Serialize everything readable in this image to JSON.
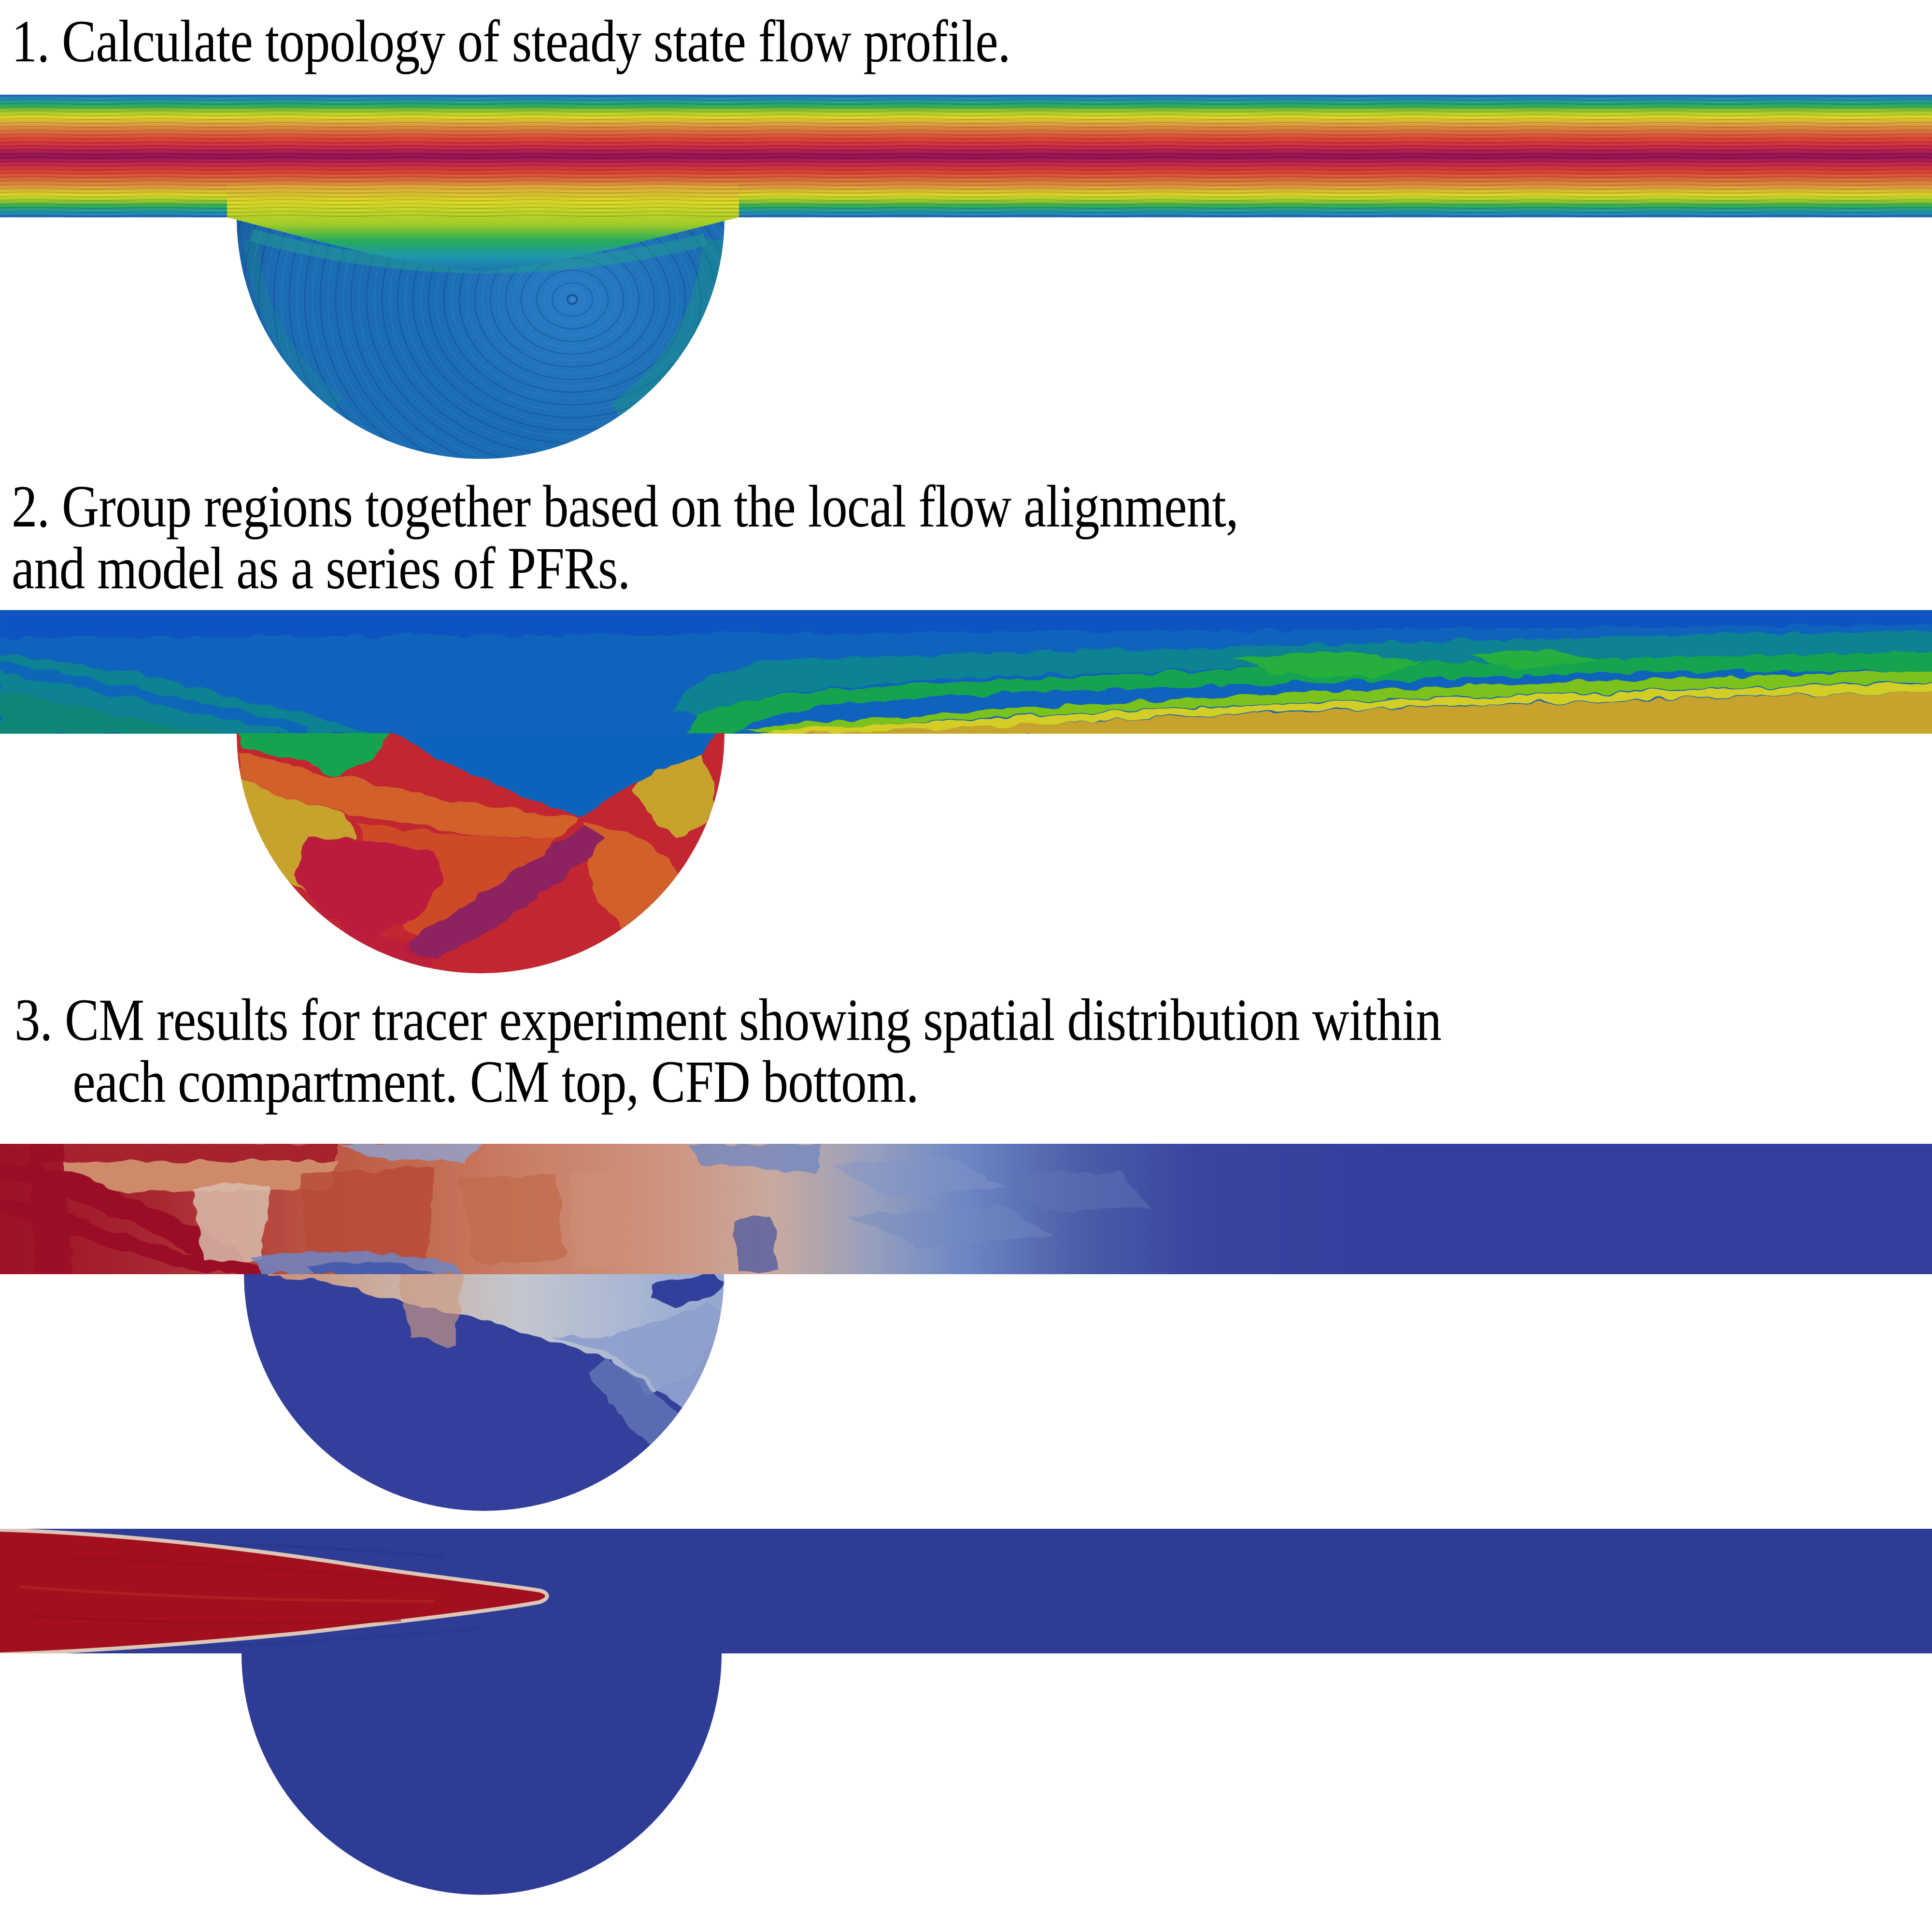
{
  "figure": {
    "background": "#ffffff"
  },
  "captions": {
    "step1": "1. Calculate topology of steady state flow profile.",
    "step2_line1": "2. Group regions together based on the local flow alignment,",
    "step2_line2": "and model as a series of PFRs.",
    "step3_line1": "3. CM results for tracer experiment showing spatial distribution within",
    "step3_line2": "each compartment. CM top, CFD bottom."
  },
  "palette": {
    "jet1": "#2A66C0",
    "jet2": "#1E98AA",
    "jet3": "#27AC58",
    "jet4": "#9ECB29",
    "jet5": "#DCDC25",
    "jet6": "#DFA139",
    "jet7": "#DD6A38",
    "jet8": "#DC4034",
    "jet9": "#C92747",
    "jet10": "#8F1056",
    "cav1_base": "#1C6CB4",
    "cav1_hi": "#2A7CC6",
    "cav1_tint": "#1A9B7E",
    "p2_darkblue": "#0A52C2",
    "p2_blue": "#0F63BC",
    "p2_teal": "#0E8292",
    "p2_tealgreen": "#108678",
    "p2_green": "#12A350",
    "p2_brightgreen": "#27B03C",
    "p2_lightgreen": "#7CC21F",
    "p2_yellow": "#D3CE27",
    "p2_mustard": "#C7A32D",
    "p2_orange": "#D2602A",
    "p2_redorange": "#CE4A28",
    "p2_red": "#C22731",
    "p2_crimson": "#BB1E3C",
    "p2_purple": "#8C2060",
    "p3_darkred": "#9B1126",
    "p3_red": "#B23A33",
    "p3_brick": "#B84A38",
    "p3_salmon": "#C97E63",
    "p3_lightsalmon": "#CF8A6A",
    "p3_pale": "#D5BCAC",
    "p3_palegray": "#C3C6CE",
    "p3_lightblue": "#9FB0D4",
    "p3_medblue": "#6D86C4",
    "p3_blue": "#4B5CA8",
    "p3_navy": "#333F9B",
    "p4_navy": "#2E3C96",
    "p4_red": "#A30F1D",
    "p4_darkred": "#8E0D1A",
    "p4_rim": "#E5CDB8",
    "text_color": "#000000"
  }
}
